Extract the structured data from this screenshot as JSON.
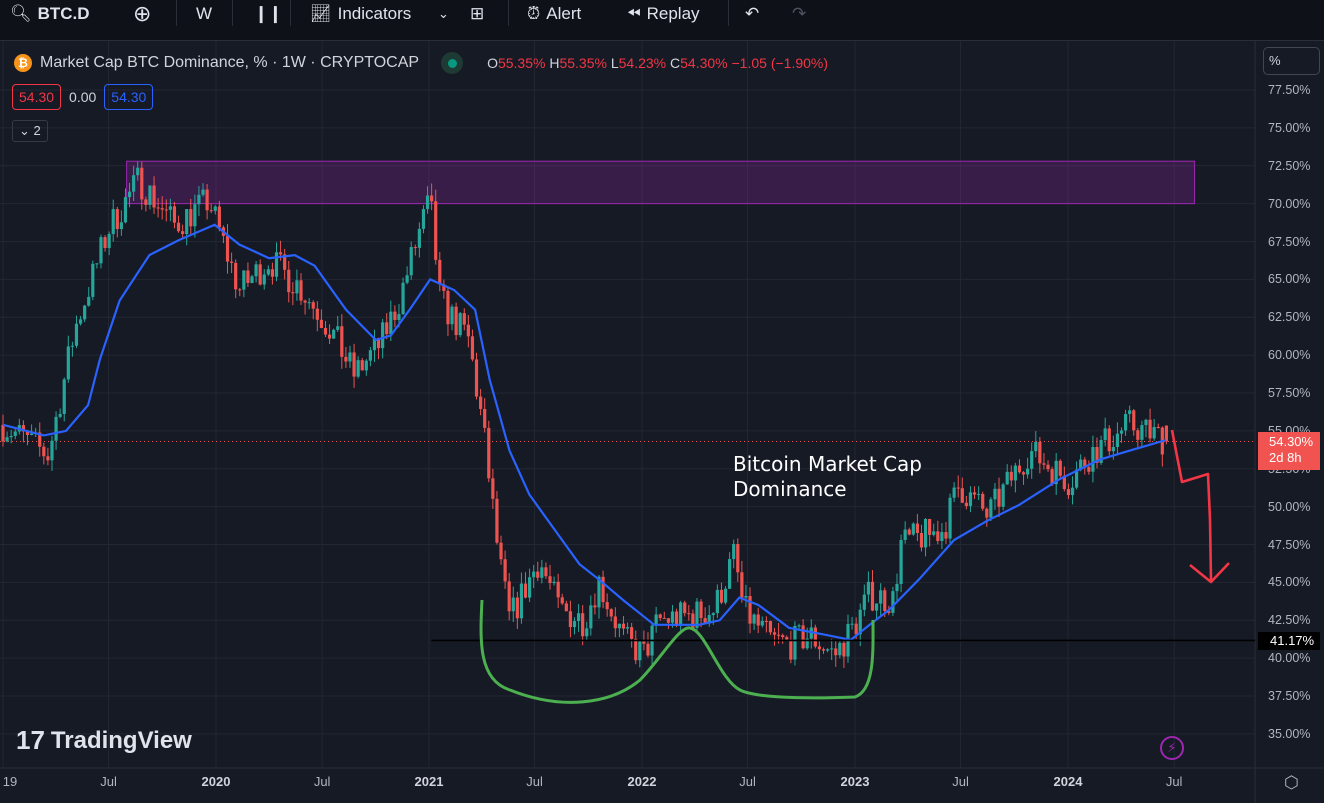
{
  "toolbar": {
    "symbol": "BTC.D",
    "interval": "W",
    "indicators": "Indicators",
    "alert": "Alert",
    "replay": "Replay"
  },
  "legend": {
    "title": "Market Cap BTC Dominance, % · 1W · CRYPTOCAP",
    "o_label": "O",
    "o": "55.35%",
    "h_label": "H",
    "h": "55.35%",
    "l_label": "L",
    "l": "54.23%",
    "c_label": "C",
    "c": "54.30%",
    "change": "−1.05 (−1.90%)",
    "val1": "54.30",
    "val2": "0.00",
    "val3": "54.30",
    "collapsed_count": "2"
  },
  "axis": {
    "unit": "%",
    "last_price": "54.30%",
    "countdown": "2d 8h",
    "level": "41.17%"
  },
  "annotation": {
    "text": "Bitcoin Market Cap\nDominance"
  },
  "brand": "TradingView",
  "colors": {
    "up": "#26a69a",
    "down": "#ef5350",
    "ma": "#2962ff",
    "zone": "#9c27b0",
    "pattern": "#4caf50",
    "arrow": "#f23645"
  },
  "chart_data": {
    "type": "candlestick",
    "interval": "1W",
    "ylim": [
      33.5,
      79
    ],
    "yticks": [
      77.5,
      75,
      72.5,
      70,
      67.5,
      65,
      62.5,
      60,
      57.5,
      55,
      52.5,
      50,
      47.5,
      45,
      42.5,
      40,
      37.5,
      35
    ],
    "xticks": [
      {
        "label": "19",
        "t": "2019-01-01"
      },
      {
        "label": "Jul",
        "t": "2019-07-01"
      },
      {
        "label": "2020",
        "t": "2020-01-01",
        "bold": true
      },
      {
        "label": "Jul",
        "t": "2020-07-01"
      },
      {
        "label": "2021",
        "t": "2021-01-01",
        "bold": true
      },
      {
        "label": "Jul",
        "t": "2021-07-01"
      },
      {
        "label": "2022",
        "t": "2022-01-01",
        "bold": true
      },
      {
        "label": "Jul",
        "t": "2022-07-01"
      },
      {
        "label": "2023",
        "t": "2023-01-01",
        "bold": true
      },
      {
        "label": "Jul",
        "t": "2023-07-01"
      },
      {
        "label": "2024",
        "t": "2024-01-01",
        "bold": true
      },
      {
        "label": "Jul",
        "t": "2024-07-01"
      }
    ],
    "close_path": [
      [
        "2019-01-01",
        55.4
      ],
      [
        "2019-03-20",
        53.4
      ],
      [
        "2019-05-04",
        61.7
      ],
      [
        "2019-07-01",
        68.3
      ],
      [
        "2019-08-22",
        71.6
      ],
      [
        "2019-10-22",
        68.6
      ],
      [
        "2019-12-20",
        70.2
      ],
      [
        "2020-02-10",
        64.3
      ],
      [
        "2020-04-01",
        66.3
      ],
      [
        "2020-05-22",
        64.6
      ],
      [
        "2020-07-16",
        61.7
      ],
      [
        "2020-08-25",
        58.7
      ],
      [
        "2020-10-08",
        60.7
      ],
      [
        "2020-11-10",
        63.6
      ],
      [
        "2020-12-16",
        68.3
      ],
      [
        "2021-01-03",
        70.2
      ],
      [
        "2021-01-20",
        63.6
      ],
      [
        "2021-03-10",
        61.0
      ],
      [
        "2021-04-04",
        55.1
      ],
      [
        "2021-05-01",
        46.5
      ],
      [
        "2021-05-19",
        42.5
      ],
      [
        "2021-07-09",
        46.5
      ],
      [
        "2021-08-12",
        43.2
      ],
      [
        "2021-09-24",
        42.5
      ],
      [
        "2021-10-19",
        45.1
      ],
      [
        "2021-12-01",
        41.2
      ],
      [
        "2022-01-04",
        40.2
      ],
      [
        "2022-01-30",
        42.5
      ],
      [
        "2022-03-25",
        42.8
      ],
      [
        "2022-05-05",
        43.2
      ],
      [
        "2022-06-08",
        46.8
      ],
      [
        "2022-06-24",
        43.2
      ],
      [
        "2022-08-08",
        41.2
      ],
      [
        "2022-09-10",
        40.9
      ],
      [
        "2022-10-15",
        41.5
      ],
      [
        "2022-11-28",
        40.2
      ],
      [
        "2023-01-01",
        42.2
      ],
      [
        "2023-01-26",
        44.2
      ],
      [
        "2023-03-10",
        43.8
      ],
      [
        "2023-03-18",
        47.5
      ],
      [
        "2023-06-02",
        48.5
      ],
      [
        "2023-06-28",
        51.4
      ],
      [
        "2023-08-17",
        49.4
      ],
      [
        "2023-10-26",
        53.7
      ],
      [
        "2024-01-04",
        51.7
      ],
      [
        "2024-02-06",
        53.4
      ],
      [
        "2024-04-16",
        55.4
      ],
      [
        "2024-06-24",
        54.3
      ]
    ],
    "moving_average": [
      [
        "2019-01-01",
        55.4
      ],
      [
        "2019-03-12",
        54.7
      ],
      [
        "2019-04-19",
        55.0
      ],
      [
        "2019-05-27",
        56.7
      ],
      [
        "2019-06-16",
        59.7
      ],
      [
        "2019-07-20",
        63.6
      ],
      [
        "2019-09-09",
        66.6
      ],
      [
        "2019-10-30",
        67.6
      ],
      [
        "2019-12-30",
        68.6
      ],
      [
        "2020-02-10",
        67.3
      ],
      [
        "2020-04-01",
        66.4
      ],
      [
        "2020-05-15",
        66.6
      ],
      [
        "2020-06-18",
        65.9
      ],
      [
        "2020-08-11",
        63.0
      ],
      [
        "2020-10-01",
        61.0
      ],
      [
        "2020-10-27",
        61.3
      ],
      [
        "2020-11-28",
        63.0
      ],
      [
        "2021-01-03",
        65.0
      ],
      [
        "2021-02-13",
        64.3
      ],
      [
        "2021-03-21",
        63.0
      ],
      [
        "2021-04-15",
        58.4
      ],
      [
        "2021-05-19",
        53.7
      ],
      [
        "2021-06-22",
        50.8
      ],
      [
        "2021-08-04",
        48.5
      ],
      [
        "2021-09-16",
        46.2
      ],
      [
        "2021-10-19",
        45.2
      ],
      [
        "2021-12-01",
        43.8
      ],
      [
        "2022-01-22",
        42.2
      ],
      [
        "2022-04-09",
        42.2
      ],
      [
        "2022-05-14",
        42.5
      ],
      [
        "2022-06-17",
        44.0
      ],
      [
        "2022-07-20",
        43.5
      ],
      [
        "2022-09-10",
        42.0
      ],
      [
        "2022-11-17",
        41.5
      ],
      [
        "2022-12-25",
        41.2
      ],
      [
        "2023-01-26",
        42.2
      ],
      [
        "2023-03-01",
        43.2
      ],
      [
        "2023-04-21",
        45.2
      ],
      [
        "2023-06-20",
        47.8
      ],
      [
        "2023-08-17",
        49.1
      ],
      [
        "2023-10-09",
        50.1
      ],
      [
        "2023-12-17",
        51.8
      ],
      [
        "2024-02-24",
        53.1
      ],
      [
        "2024-04-16",
        53.7
      ],
      [
        "2024-06-17",
        54.4
      ]
    ],
    "last": {
      "open": 55.35,
      "high": 55.35,
      "low": 54.23,
      "close": 54.3
    },
    "resistance_zone": {
      "from": "2019-08-01",
      "to": "2024-08-05",
      "low": 70.0,
      "high": 72.8
    },
    "support_level": {
      "from": "2021-01-05",
      "value": 41.17
    }
  }
}
